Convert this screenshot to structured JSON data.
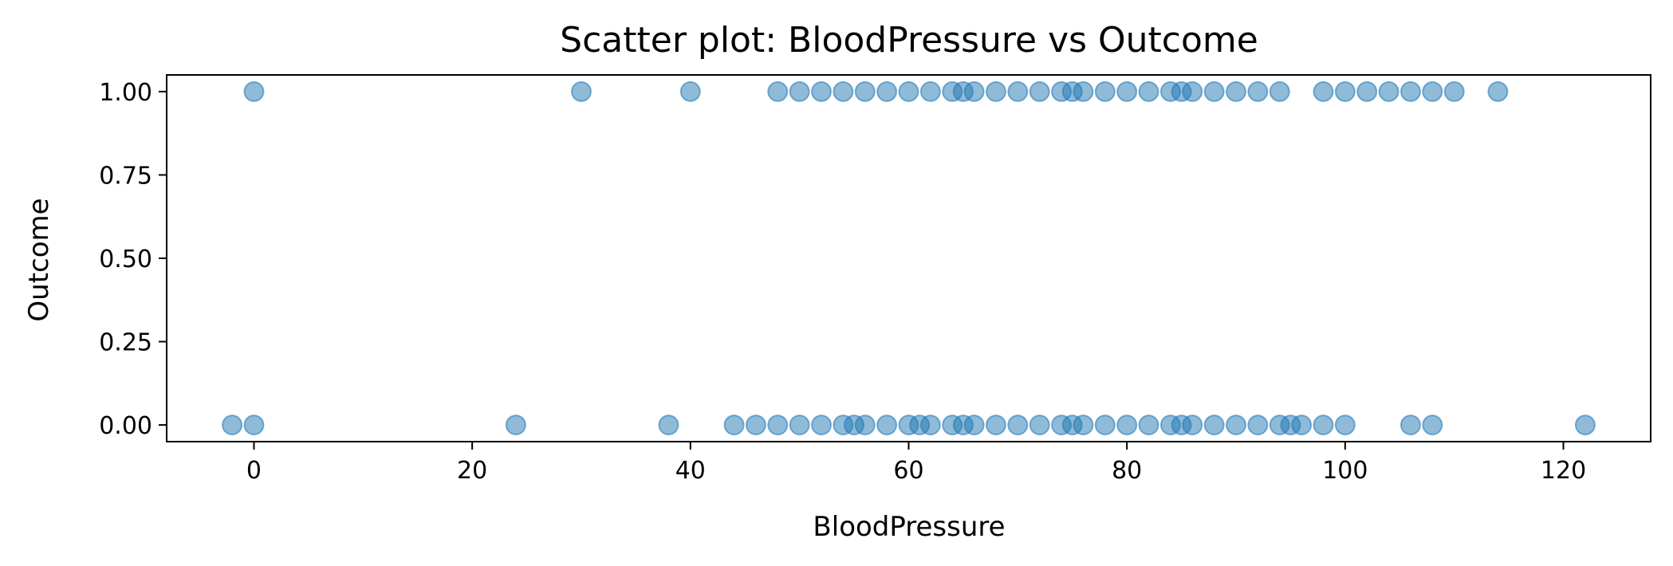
{
  "chart_data": {
    "type": "scatter",
    "title": "Scatter plot: BloodPressure vs Outcome",
    "xlabel": "BloodPressure",
    "ylabel": "Outcome",
    "xlim": [
      -8,
      128
    ],
    "ylim": [
      -0.05,
      1.05
    ],
    "xticks": [
      0,
      20,
      40,
      60,
      80,
      100,
      120
    ],
    "xtick_labels": [
      "0",
      "20",
      "40",
      "60",
      "80",
      "100",
      "120"
    ],
    "yticks": [
      0,
      0.25,
      0.5,
      0.75,
      1
    ],
    "ytick_labels": [
      "0.00",
      "0.25",
      "0.50",
      "0.75",
      "1.00"
    ],
    "grid": false,
    "marker_color": "#1f77b4",
    "marker_alpha": 0.5,
    "series": [
      {
        "points": [
          [
            0,
            1
          ],
          [
            30,
            1
          ],
          [
            40,
            1
          ],
          [
            48,
            1
          ],
          [
            50,
            1
          ],
          [
            52,
            1
          ],
          [
            54,
            1
          ],
          [
            56,
            1
          ],
          [
            58,
            1
          ],
          [
            60,
            1
          ],
          [
            62,
            1
          ],
          [
            64,
            1
          ],
          [
            65,
            1
          ],
          [
            66,
            1
          ],
          [
            68,
            1
          ],
          [
            70,
            1
          ],
          [
            72,
            1
          ],
          [
            74,
            1
          ],
          [
            75,
            1
          ],
          [
            76,
            1
          ],
          [
            78,
            1
          ],
          [
            80,
            1
          ],
          [
            82,
            1
          ],
          [
            84,
            1
          ],
          [
            85,
            1
          ],
          [
            86,
            1
          ],
          [
            88,
            1
          ],
          [
            90,
            1
          ],
          [
            92,
            1
          ],
          [
            94,
            1
          ],
          [
            98,
            1
          ],
          [
            100,
            1
          ],
          [
            102,
            1
          ],
          [
            104,
            1
          ],
          [
            106,
            1
          ],
          [
            108,
            1
          ],
          [
            110,
            1
          ],
          [
            114,
            1
          ],
          [
            -2,
            0
          ],
          [
            0,
            0
          ],
          [
            24,
            0
          ],
          [
            38,
            0
          ],
          [
            44,
            0
          ],
          [
            46,
            0
          ],
          [
            48,
            0
          ],
          [
            50,
            0
          ],
          [
            52,
            0
          ],
          [
            54,
            0
          ],
          [
            55,
            0
          ],
          [
            56,
            0
          ],
          [
            58,
            0
          ],
          [
            60,
            0
          ],
          [
            61,
            0
          ],
          [
            62,
            0
          ],
          [
            64,
            0
          ],
          [
            65,
            0
          ],
          [
            66,
            0
          ],
          [
            68,
            0
          ],
          [
            70,
            0
          ],
          [
            72,
            0
          ],
          [
            74,
            0
          ],
          [
            75,
            0
          ],
          [
            76,
            0
          ],
          [
            78,
            0
          ],
          [
            80,
            0
          ],
          [
            82,
            0
          ],
          [
            84,
            0
          ],
          [
            85,
            0
          ],
          [
            86,
            0
          ],
          [
            88,
            0
          ],
          [
            90,
            0
          ],
          [
            92,
            0
          ],
          [
            94,
            0
          ],
          [
            95,
            0
          ],
          [
            96,
            0
          ],
          [
            98,
            0
          ],
          [
            100,
            0
          ],
          [
            106,
            0
          ],
          [
            108,
            0
          ],
          [
            122,
            0
          ]
        ]
      }
    ]
  }
}
